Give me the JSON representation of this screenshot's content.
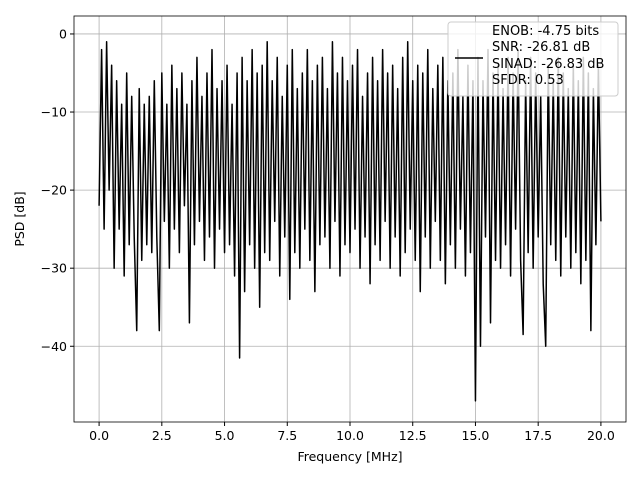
{
  "chart_data": {
    "type": "line",
    "x_label": "Frequency [MHz]",
    "y_label": "PSD [dB]",
    "x": [
      0,
      0.1,
      0.2,
      0.3,
      0.4,
      0.5,
      0.6,
      0.7,
      0.8,
      0.9,
      1,
      1.1,
      1.2,
      1.3,
      1.4,
      1.5,
      1.6,
      1.7,
      1.8,
      1.9,
      2,
      2.1,
      2.2,
      2.3,
      2.4,
      2.5,
      2.6,
      2.7,
      2.8,
      2.9,
      3,
      3.1,
      3.2,
      3.3,
      3.4,
      3.5,
      3.6,
      3.7,
      3.8,
      3.9,
      4,
      4.1,
      4.2,
      4.3,
      4.4,
      4.5,
      4.6,
      4.7,
      4.8,
      4.9,
      5,
      5.1,
      5.2,
      5.3,
      5.4,
      5.5,
      5.6,
      5.7,
      5.8,
      5.9,
      6,
      6.1,
      6.2,
      6.3,
      6.4,
      6.5,
      6.6,
      6.7,
      6.8,
      6.9,
      7,
      7.1,
      7.2,
      7.3,
      7.4,
      7.5,
      7.6,
      7.7,
      7.8,
      7.9,
      8,
      8.1,
      8.2,
      8.3,
      8.4,
      8.5,
      8.6,
      8.7,
      8.8,
      8.9,
      9,
      9.1,
      9.2,
      9.3,
      9.4,
      9.5,
      9.6,
      9.7,
      9.8,
      9.9,
      10,
      10.1,
      10.2,
      10.3,
      10.4,
      10.5,
      10.6,
      10.7,
      10.8,
      10.9,
      11,
      11.1,
      11.2,
      11.3,
      11.4,
      11.5,
      11.6,
      11.7,
      11.8,
      11.9,
      12,
      12.1,
      12.2,
      12.3,
      12.4,
      12.5,
      12.6,
      12.7,
      12.8,
      12.9,
      13,
      13.1,
      13.2,
      13.3,
      13.4,
      13.5,
      13.6,
      13.7,
      13.8,
      13.9,
      14,
      14.1,
      14.2,
      14.3,
      14.4,
      14.5,
      14.6,
      14.7,
      14.8,
      14.9,
      15,
      15.1,
      15.2,
      15.3,
      15.4,
      15.5,
      15.6,
      15.7,
      15.8,
      15.9,
      16,
      16.1,
      16.2,
      16.3,
      16.4,
      16.5,
      16.6,
      16.7,
      16.8,
      16.9,
      17,
      17.1,
      17.2,
      17.3,
      17.4,
      17.5,
      17.6,
      17.7,
      17.8,
      17.9,
      18,
      18.1,
      18.2,
      18.3,
      18.4,
      18.5,
      18.6,
      18.7,
      18.8,
      18.9,
      19,
      19.1,
      19.2,
      19.3,
      19.4,
      19.5,
      19.6,
      19.7,
      19.8,
      19.9,
      20
    ],
    "series": [
      {
        "name": "ENOB: -4.75 bits\nSNR: -26.81 dB\nSINAD: -26.83 dB\nSFDR: 0.53",
        "color": "#000000",
        "values": [
          -22,
          -2,
          -25,
          -1,
          -20,
          -4,
          -30,
          -6,
          -25,
          -9,
          -31,
          -5,
          -27,
          -8,
          -26,
          -38,
          -7,
          -29,
          -9,
          -27,
          -8,
          -28,
          -6,
          -26,
          -38,
          -5,
          -24,
          -9,
          -30,
          -4,
          -25,
          -7,
          -28,
          -5,
          -22,
          -9,
          -37,
          -6,
          -27,
          -3,
          -24,
          -8,
          -29,
          -5,
          -26,
          -2,
          -30,
          -7,
          -25,
          -6,
          -28,
          -4,
          -27,
          -9,
          -31,
          -5,
          -41.5,
          -3,
          -33,
          -6,
          -27,
          -2,
          -30,
          -5,
          -35,
          -4,
          -28,
          -1,
          -29,
          -6,
          -24,
          -3,
          -31,
          -8,
          -26,
          -4,
          -34,
          -2,
          -28,
          -7,
          -30,
          -5,
          -25,
          -2,
          -29,
          -6,
          -33,
          -4,
          -27,
          -3,
          -26,
          -7,
          -30,
          -1,
          -24,
          -5,
          -31,
          -3,
          -27,
          -6,
          -28,
          -4,
          -25,
          -2,
          -30,
          -8,
          -26,
          -5,
          -32,
          -3,
          -27,
          -6,
          -29,
          -2,
          -24,
          -5,
          -30,
          -4,
          -26,
          -7,
          -31,
          -3,
          -28,
          -1,
          -25,
          -6,
          -29,
          -4,
          -33,
          -5,
          -26,
          -2,
          -30,
          -7,
          -24,
          -4,
          -29,
          -3,
          -32,
          -6,
          -27,
          -5,
          -30,
          -2,
          -25,
          -8,
          -31,
          -4,
          -28,
          -6,
          -47,
          -3,
          -40,
          -6,
          -26,
          -2,
          -37,
          -5,
          -29,
          -4,
          -30,
          -7,
          -27,
          -3,
          -31,
          -5,
          -25,
          -2,
          -29,
          -38.5,
          -6,
          -28,
          -3,
          -30,
          -5,
          -26,
          -8,
          -32,
          -40,
          -4,
          -27,
          -6,
          -29,
          -3,
          -31,
          -5,
          -26,
          -7,
          -30,
          -4,
          -28,
          -6,
          -32,
          -3,
          -29,
          -5,
          -38,
          -7,
          -27,
          -4,
          -24
        ]
      }
    ],
    "xlim": [
      -1.0,
      21.0
    ],
    "ylim": [
      -49.7,
      2.3
    ],
    "xticks": [
      {
        "value": 0,
        "label": "0.0"
      },
      2.5,
      {
        "value": 5,
        "label": "5.0"
      },
      7.5,
      {
        "value": 10,
        "label": "10.0"
      },
      12.5,
      {
        "value": 15,
        "label": "15.0"
      },
      17.5,
      {
        "value": 20,
        "label": "20.0"
      }
    ],
    "yticks": [
      {
        "value": 0,
        "label": "0"
      },
      {
        "value": -10,
        "label": "−10"
      },
      {
        "value": -20,
        "label": "−20"
      },
      {
        "value": -30,
        "label": "−30"
      },
      {
        "value": -40,
        "label": "−40"
      }
    ],
    "grid": true,
    "legend": "upper right"
  }
}
